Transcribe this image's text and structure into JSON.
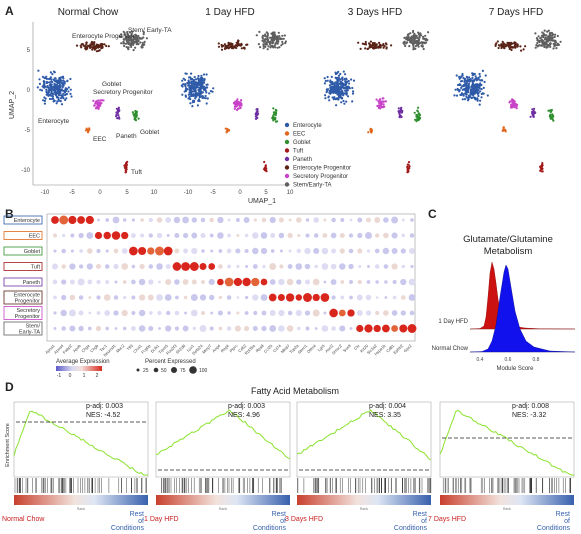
{
  "panel_labels": {
    "a": "A",
    "b": "B",
    "c": "C",
    "d": "D"
  },
  "panel_a": {
    "umap_titles": [
      "Normal Chow",
      "1 Day HFD",
      "3 Days HFD",
      "7 Days HFD"
    ],
    "x_axis_title": "UMAP_1",
    "y_axis_title": "UMAP_2",
    "x_ticks": [
      "-10",
      "-5",
      "0",
      "5",
      "10"
    ],
    "y_ticks": [
      "5",
      "0",
      "-5",
      "-10"
    ],
    "cluster_annotations": [
      "Enterocyte Progenitor",
      "Stem/ Early-TA",
      "Goblet",
      "Secretory Progenitor",
      "Enterocyte",
      "EEC",
      "Paneth",
      "Goblet",
      "Tuft"
    ],
    "legend": [
      {
        "label": "Enterocyte",
        "color": "#2e5aa8"
      },
      {
        "label": "EEC",
        "color": "#e0661c"
      },
      {
        "label": "Goblet",
        "color": "#2f8f2f"
      },
      {
        "label": "Tuft",
        "color": "#a31a1a"
      },
      {
        "label": "Paneth",
        "color": "#6e2fa3"
      },
      {
        "label": "Enterocyte Progenitor",
        "color": "#5a2317"
      },
      {
        "label": "Secretory Progenitor",
        "color": "#c843c8"
      },
      {
        "label": "Stem/Early-TA",
        "color": "#5f5f5f"
      }
    ]
  },
  "panel_b": {
    "row_labels": [
      "Enterocyte",
      "EEC",
      "Goblet",
      "Tuft",
      "Paneth",
      "Enterocyte Progenitor",
      "Secretory Progenitor",
      "Stem/ Early-TA"
    ],
    "row_colors": [
      "#2e5aa8",
      "#e0661c",
      "#2f8f2f",
      "#a31a1a",
      "#6e2fa3",
      "#5a2317",
      "#c843c8",
      "#5f5f5f"
    ],
    "genes": [
      "Apoa1",
      "Apoa4",
      "Fabp2",
      "Apob",
      "Chga",
      "Chgb",
      "Tac1",
      "Neurod1",
      "Muc2",
      "Tff3",
      "Clca1",
      "Fcgbp",
      "Dclk1",
      "Trpm5",
      "Pou2f3",
      "Sh2d6",
      "Lyz1",
      "Defa24",
      "Mmp7",
      "Ang4",
      "Reg4",
      "Ptprc",
      "Cd52",
      "Rpl35a",
      "Rps8",
      "Ccl25",
      "Cd74",
      "Mki67",
      "Top2a",
      "Stmn1",
      "Olfm4",
      "Lgr5",
      "Ascl2",
      "Smoc2",
      "Sox9",
      "Clu",
      "Krt20",
      "Slc2a2",
      "Hspa1b",
      "Cd81",
      "Ephb2",
      "Gpx2"
    ],
    "legend_avg_expression_title": "Average Expression",
    "legend_avg_expression_ticks": [
      "-1",
      "0",
      "1",
      "2"
    ],
    "legend_percent_title": "Percent Expressed",
    "legend_percent_values": [
      "25",
      "50",
      "75",
      "100"
    ]
  },
  "panel_c": {
    "title_line1": "Glutamate/Glutamine",
    "title_line2": "Metabolism",
    "x_axis_title": "Module Score",
    "groups": [
      "1 Day HFD",
      "Normal Chow"
    ],
    "x_ticks": [
      "0.4",
      "0.6",
      "0.8"
    ],
    "chart_data": {
      "type": "ridgeline",
      "title": "Glutamate/Glutamine Metabolism",
      "xlabel": "Module Score",
      "series": [
        {
          "name": "1 Day HFD",
          "color": "#cc1111"
        },
        {
          "name": "Normal Chow",
          "color": "#1111ee"
        }
      ]
    }
  },
  "panel_d": {
    "title": "Fatty Acid Metabolism",
    "y_axis_title": "Enrichment Score",
    "right_label": "Rest of Conditions",
    "x_axis_small_label": "Rank",
    "chart_data": [
      {
        "type": "line",
        "condition": "Normal Chow",
        "p_adj": "p-adj: 0.003",
        "nes": "NES: -4.52"
      },
      {
        "type": "line",
        "condition": "1 Day HFD",
        "p_adj": "p-adj: 0.003",
        "nes": "NES: 4.96"
      },
      {
        "type": "line",
        "condition": "3 Days HFD",
        "p_adj": "p-adj: 0.004",
        "nes": "NES: 3.35"
      },
      {
        "type": "line",
        "condition": "7 Days HFD",
        "p_adj": "p-adj: 0.008",
        "nes": "NES: -3.32"
      }
    ]
  }
}
